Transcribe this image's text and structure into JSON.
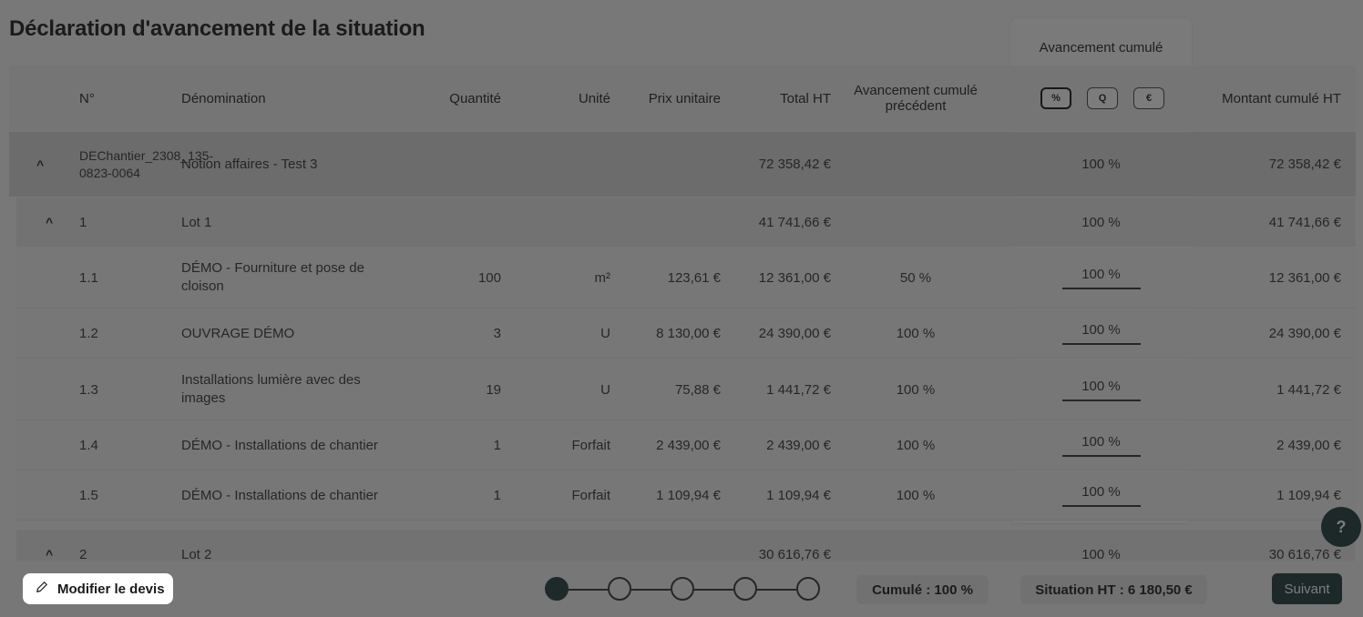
{
  "page_title": "Déclaration d'avancement de la situation",
  "progress_column": {
    "label": "Avancement cumulé",
    "toggles": [
      {
        "label": "%",
        "active": true
      },
      {
        "label": "Q",
        "active": false
      },
      {
        "label": "€",
        "active": false
      }
    ]
  },
  "columns": {
    "num": "N°",
    "name": "Dénomination",
    "qty": "Quantité",
    "unit": "Unité",
    "unit_price": "Prix unitaire",
    "total": "Total HT",
    "prev_progress": "Avancement cumulé précédent",
    "cumul_amount": "Montant cumulé HT"
  },
  "groups": {
    "project": {
      "num": "DEChantier_2308_135-0823-0064",
      "name": "Notion affaires - Test 3",
      "total": "72 358,42 €",
      "progress": "100 %",
      "cumul_amount": "72 358,42 €"
    },
    "lot1": {
      "num": "1",
      "name": "Lot 1",
      "total": "41 741,66 €",
      "progress": "100 %",
      "cumul_amount": "41 741,66 €"
    },
    "lot2": {
      "num": "2",
      "name": "Lot 2",
      "total": "30 616,76 €",
      "progress": "100 %",
      "cumul_amount": "30 616,76 €"
    }
  },
  "items": [
    {
      "num": "1.1",
      "name": "DÉMO - Fourniture et pose de cloison",
      "qty": "100",
      "unit": "m²",
      "unit_price": "123,61 €",
      "total": "12 361,00 €",
      "prev": "50 %",
      "progress": "100 %",
      "cumul": "12 361,00 €"
    },
    {
      "num": "1.2",
      "name": "OUVRAGE DÉMO",
      "qty": "3",
      "unit": "U",
      "unit_price": "8 130,00 €",
      "total": "24 390,00 €",
      "prev": "100 %",
      "progress": "100 %",
      "cumul": "24 390,00 €"
    },
    {
      "num": "1.3",
      "name": "Installations lumière avec des images",
      "qty": "19",
      "unit": "U",
      "unit_price": "75,88 €",
      "total": "1 441,72 €",
      "prev": "100 %",
      "progress": "100 %",
      "cumul": "1 441,72 €"
    },
    {
      "num": "1.4",
      "name": "DÉMO - Installations de chantier",
      "qty": "1",
      "unit": "Forfait",
      "unit_price": "2 439,00 €",
      "total": "2 439,00 €",
      "prev": "100 %",
      "progress": "100 %",
      "cumul": "2 439,00 €"
    },
    {
      "num": "1.5",
      "name": "DÉMO - Installations de chantier",
      "qty": "1",
      "unit": "Forfait",
      "unit_price": "1 109,94 €",
      "total": "1 109,94 €",
      "prev": "100 %",
      "progress": "100 %",
      "cumul": "1 109,94 €"
    }
  ],
  "footer": {
    "edit_label": "Modifier le devis",
    "steps_total": 5,
    "current_step": 1,
    "cumul_label": "Cumulé : 100 %",
    "situation_label": "Situation HT : 6 180,50 €",
    "next_label": "Suivant"
  },
  "help_label": "?",
  "colors": {
    "accent": "#1d3a3a",
    "overlay": "#1e1e1e"
  }
}
